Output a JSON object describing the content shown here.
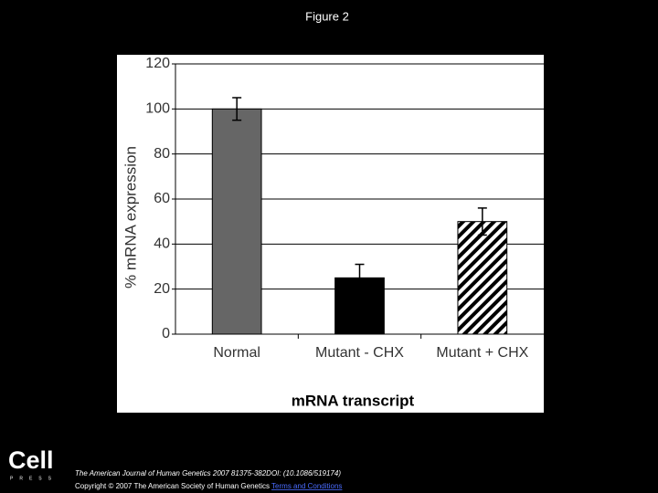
{
  "chart_data": {
    "type": "bar",
    "title": "Figure 2",
    "categories": [
      "Normal",
      "Mutant - CHX",
      "Mutant + CHX"
    ],
    "values": [
      100,
      25,
      50
    ],
    "errors": [
      5,
      6,
      6
    ],
    "colors": [
      "#666666",
      "#000000",
      "#ffffff"
    ],
    "hatch": [
      false,
      false,
      true
    ],
    "y_label": "% mRNA expression",
    "x_label": "mRNA transcript",
    "ylim": [
      0,
      120
    ],
    "yticks": [
      0,
      20,
      40,
      60,
      80,
      100,
      120
    ],
    "grid": true
  },
  "logo": {
    "name": "Cell",
    "sub": "PRESS"
  },
  "footer": {
    "citation": "The American Journal of Human Genetics 2007 81375-382DOI: (10.1086/519174)",
    "copyright": "Copyright © 2007 The American Society of Human Genetics",
    "link": "Terms and Conditions"
  }
}
